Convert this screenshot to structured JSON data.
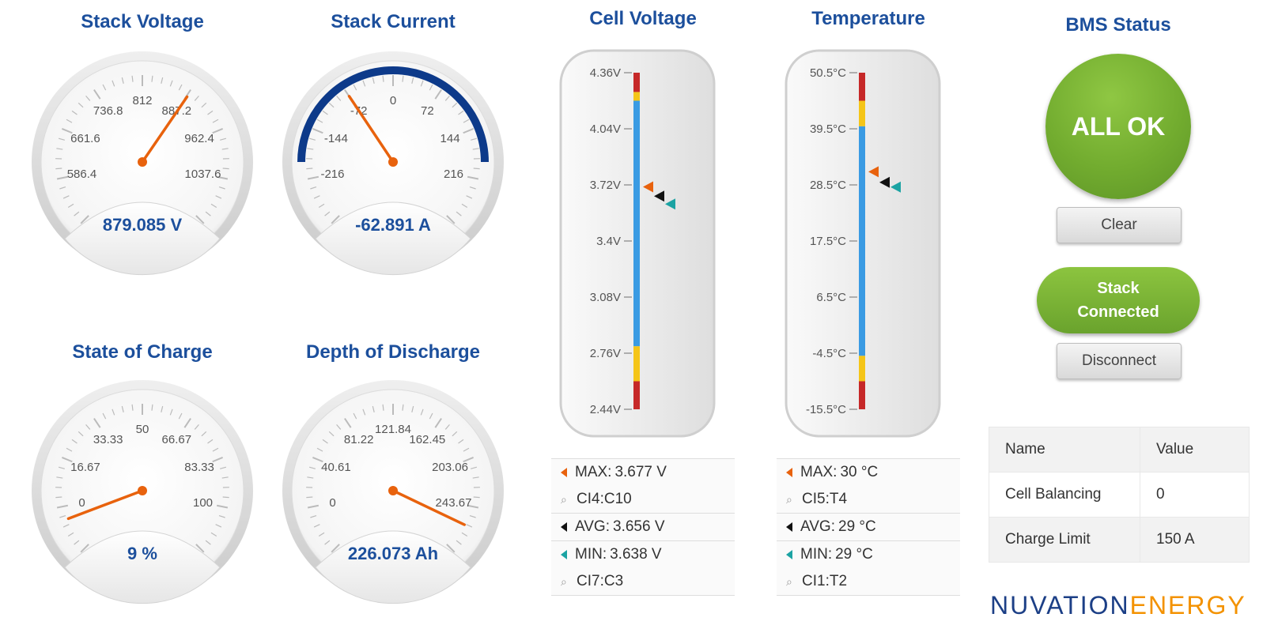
{
  "gauges": [
    {
      "title": "Stack Voltage",
      "ticks": [
        "586.4",
        "661.6",
        "736.8",
        "812",
        "887.2",
        "962.4",
        "1037.6"
      ],
      "min": 548.8,
      "max": 1075.2,
      "value": 879.085,
      "readout": "879.085 V",
      "arc": false
    },
    {
      "title": "Stack Current",
      "ticks": [
        "-216",
        "-144",
        "-72",
        "0",
        "72",
        "144",
        "216"
      ],
      "min": -252,
      "max": 252,
      "value": -62.891,
      "readout": "-62.891 A",
      "arc": true
    },
    {
      "title": "State of Charge",
      "ticks": [
        "0",
        "16.67",
        "33.33",
        "50",
        "66.67",
        "83.33",
        "100"
      ],
      "min": 0,
      "max": 100,
      "value": 9,
      "readout": "9 %",
      "arc": false
    },
    {
      "title": "Depth of Discharge",
      "ticks": [
        "0",
        "40.61",
        "81.22",
        "121.84",
        "162.45",
        "203.06",
        "243.67"
      ],
      "min": 0,
      "max": 243.67,
      "value": 226.073,
      "readout": "226.073 Ah",
      "arc": false
    }
  ],
  "bars": [
    {
      "title": "Cell Voltage",
      "ticks": [
        "4.36V",
        "4.04V",
        "3.72V",
        "3.4V",
        "3.08V",
        "2.76V",
        "2.44V"
      ],
      "min": 2.44,
      "max": 4.36,
      "zones": [
        {
          "from": 2.44,
          "to": 2.6,
          "color": "#c62828"
        },
        {
          "from": 2.6,
          "to": 2.8,
          "color": "#f5c518"
        },
        {
          "from": 2.8,
          "to": 4.2,
          "color": "#3a9be3"
        },
        {
          "from": 4.2,
          "to": 4.25,
          "color": "#f5c518"
        },
        {
          "from": 4.25,
          "to": 4.36,
          "color": "#c62828"
        }
      ],
      "markers": {
        "max": 3.677,
        "avg": 3.656,
        "min": 3.638
      },
      "stats": {
        "max_label": "MAX:",
        "max_value": "3.677 V",
        "max_loc": "CI4:C10",
        "avg_label": "AVG:",
        "avg_value": "3.656 V",
        "min_label": "MIN:",
        "min_value": "3.638 V",
        "min_loc": "CI7:C3"
      }
    },
    {
      "title": "Temperature",
      "ticks": [
        "50.5°C",
        "39.5°C",
        "28.5°C",
        "17.5°C",
        "6.5°C",
        "-4.5°C",
        "-15.5°C"
      ],
      "min": -15.5,
      "max": 50.5,
      "zones": [
        {
          "from": -15.5,
          "to": -10,
          "color": "#c62828"
        },
        {
          "from": -10,
          "to": -5,
          "color": "#f5c518"
        },
        {
          "from": -5,
          "to": 40,
          "color": "#3a9be3"
        },
        {
          "from": 40,
          "to": 45,
          "color": "#f5c518"
        },
        {
          "from": 45,
          "to": 50.5,
          "color": "#c62828"
        }
      ],
      "markers": {
        "max": 30,
        "avg": 29,
        "min": 29
      },
      "stats": {
        "max_label": "MAX:",
        "max_value": "30 °C",
        "max_loc": "CI5:T4",
        "avg_label": "AVG:",
        "avg_value": "29 °C",
        "min_label": "MIN:",
        "min_value": "29 °C",
        "min_loc": "CI1:T2"
      }
    }
  ],
  "status": {
    "title": "BMS Status",
    "state": "ALL OK",
    "clear_label": "Clear",
    "connection_line1": "Stack",
    "connection_line2": "Connected",
    "disconnect_label": "Disconnect"
  },
  "table": {
    "headers": [
      "Name",
      "Value"
    ],
    "rows": [
      [
        "Cell Balancing",
        "0"
      ],
      [
        "Charge Limit",
        "150 A"
      ]
    ]
  },
  "logo": {
    "part1": "NUVATION",
    "part2": "ENERGY"
  },
  "colors": {
    "title": "#1c4f9c",
    "needle": "#e8620d",
    "arc": "#0d3a8a",
    "ok_green": "#72ac2f",
    "max_marker": "#e8620d",
    "avg_marker": "#111111",
    "min_marker": "#1ba3a3"
  }
}
